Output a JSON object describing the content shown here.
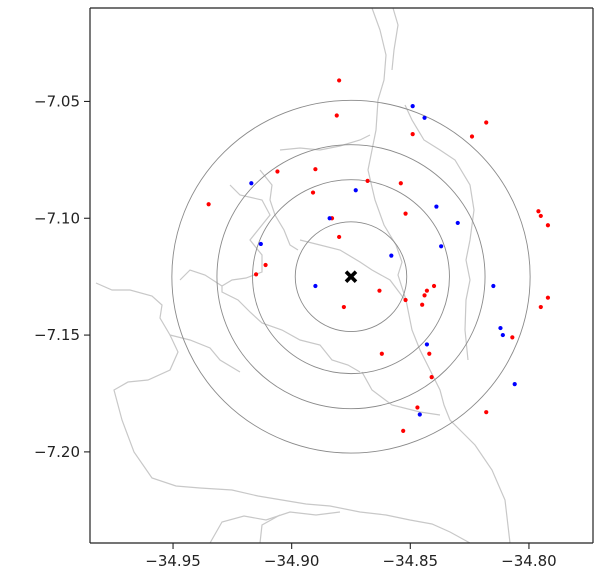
{
  "chart_data": {
    "type": "scatter",
    "title": "",
    "xlabel": "",
    "ylabel": "",
    "xlim": [
      -34.985,
      -34.773
    ],
    "ylim": [
      -7.239,
      -7.01
    ],
    "x_ticks": [
      -34.95,
      -34.9,
      -34.85,
      -34.8
    ],
    "x_tick_labels": [
      "−34.95",
      "−34.90",
      "−34.85",
      "−34.80"
    ],
    "y_ticks": [
      -7.05,
      -7.1,
      -7.15,
      -7.2
    ],
    "y_tick_labels": [
      "−7.05",
      "−7.10",
      "−7.15",
      "−7.20"
    ],
    "grid": false,
    "center": {
      "x": -34.875,
      "y": -7.125,
      "marker": "X",
      "color": "#000000"
    },
    "ring_radii": [
      0.0235,
      0.0415,
      0.0565,
      0.0755
    ],
    "series": [
      {
        "color": "#ff0000",
        "points": [
          [
            -34.88,
            -7.041
          ],
          [
            -34.881,
            -7.056
          ],
          [
            -34.849,
            -7.064
          ],
          [
            -34.824,
            -7.065
          ],
          [
            -34.818,
            -7.059
          ],
          [
            -34.906,
            -7.08
          ],
          [
            -34.89,
            -7.079
          ],
          [
            -34.854,
            -7.085
          ],
          [
            -34.935,
            -7.094
          ],
          [
            -34.891,
            -7.089
          ],
          [
            -34.868,
            -7.084
          ],
          [
            -34.883,
            -7.1
          ],
          [
            -34.88,
            -7.108
          ],
          [
            -34.852,
            -7.098
          ],
          [
            -34.796,
            -7.097
          ],
          [
            -34.795,
            -7.099
          ],
          [
            -34.792,
            -7.103
          ],
          [
            -34.915,
            -7.124
          ],
          [
            -34.911,
            -7.12
          ],
          [
            -34.863,
            -7.131
          ],
          [
            -34.878,
            -7.138
          ],
          [
            -34.852,
            -7.135
          ],
          [
            -34.844,
            -7.133
          ],
          [
            -34.843,
            -7.131
          ],
          [
            -34.84,
            -7.129
          ],
          [
            -34.845,
            -7.137
          ],
          [
            -34.795,
            -7.138
          ],
          [
            -34.792,
            -7.134
          ],
          [
            -34.842,
            -7.158
          ],
          [
            -34.862,
            -7.158
          ],
          [
            -34.807,
            -7.151
          ],
          [
            -34.841,
            -7.168
          ],
          [
            -34.847,
            -7.181
          ],
          [
            -34.818,
            -7.183
          ],
          [
            -34.853,
            -7.191
          ]
        ]
      },
      {
        "color": "#0000ff",
        "points": [
          [
            -34.849,
            -7.052
          ],
          [
            -34.844,
            -7.057
          ],
          [
            -34.917,
            -7.085
          ],
          [
            -34.873,
            -7.088
          ],
          [
            -34.839,
            -7.095
          ],
          [
            -34.884,
            -7.1
          ],
          [
            -34.83,
            -7.102
          ],
          [
            -34.913,
            -7.111
          ],
          [
            -34.837,
            -7.112
          ],
          [
            -34.858,
            -7.116
          ],
          [
            -34.89,
            -7.129
          ],
          [
            -34.815,
            -7.129
          ],
          [
            -34.812,
            -7.147
          ],
          [
            -34.811,
            -7.15
          ],
          [
            -34.843,
            -7.154
          ],
          [
            -34.806,
            -7.171
          ],
          [
            -34.846,
            -7.184
          ]
        ]
      }
    ]
  }
}
